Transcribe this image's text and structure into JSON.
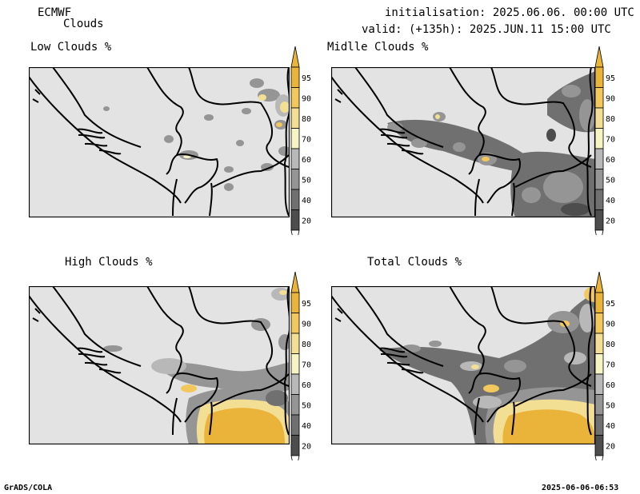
{
  "header": {
    "model": "ECMWF",
    "product": "Clouds",
    "init_line": "initialisation: 2025.06.06. 00:00 UTC",
    "valid_line": "valid: (+135h): 2025.JUN.11 15:00 UTC"
  },
  "panels": [
    {
      "title": "Low Clouds %"
    },
    {
      "title": "Midlle Clouds %"
    },
    {
      "title": "High Clouds %"
    },
    {
      "title": "Total Clouds %"
    }
  ],
  "legend": {
    "ticks": [
      "95",
      "90",
      "80",
      "70",
      "60",
      "50",
      "40",
      "20"
    ],
    "colors": {
      "c20": "#4d4d4d",
      "c40": "#707070",
      "c50": "#959595",
      "c60": "#b8b8b8",
      "c70": "#f7f4c4",
      "c80": "#f3df94",
      "c90": "#f2c85c",
      "c95": "#eab33a",
      "background": "#e3e3e3",
      "border": "#000000"
    }
  },
  "footer": {
    "left": "GrADS/COLA",
    "right": "2025-06-06-06:53"
  }
}
